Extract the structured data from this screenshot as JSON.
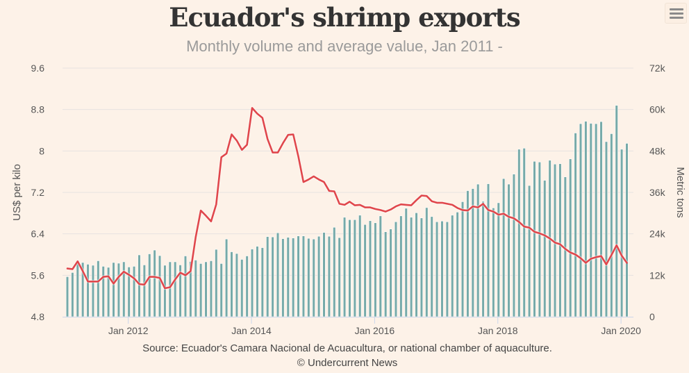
{
  "header": {
    "title": "Ecuador's shrimp exports",
    "subtitle": "Monthly volume and average value, Jan 2011 -"
  },
  "menu": {
    "icon": "hamburger-menu-icon"
  },
  "footer": {
    "source": "Source: Ecuador's Camara Nacional de Acuacultura, or national chamber of aquaculture.",
    "credit": "© Undercurrent News"
  },
  "colors": {
    "background": "#fdf2e8",
    "bars": "#76aaa9",
    "line": "#e0474c",
    "grid": "#e6e2e0"
  },
  "chart_data": {
    "type": "bar+line",
    "title": "Ecuador's shrimp exports",
    "subtitle": "Monthly volume and average value, Jan 2011 -",
    "x_start": "Jan 2011",
    "x_end": "Feb 2020",
    "x_tick_labels": [
      "Jan 2012",
      "Jan 2014",
      "Jan 2016",
      "Jan 2018",
      "Jan 2020"
    ],
    "x_tick_month_index": [
      12,
      36,
      60,
      84,
      108
    ],
    "y_left": {
      "label": "US$ per kilo",
      "range": [
        4.8,
        9.6
      ],
      "ticks": [
        "9.6",
        "8.8",
        "8",
        "7.2",
        "6.4",
        "5.6",
        "4.8"
      ],
      "tick_values": [
        9.6,
        8.8,
        8.0,
        7.2,
        6.4,
        5.6,
        4.8
      ]
    },
    "y_right": {
      "label": "Metric tons",
      "range": [
        0,
        72000
      ],
      "ticks": [
        "72k",
        "60k",
        "48k",
        "36k",
        "24k",
        "12k",
        "0"
      ],
      "tick_values": [
        72000,
        60000,
        48000,
        36000,
        24000,
        12000,
        0
      ]
    },
    "grid": true,
    "series": [
      {
        "name": "Volume (metric tons)",
        "type": "bar",
        "axis": "right",
        "values": [
          11600,
          12800,
          15400,
          15700,
          15200,
          14900,
          16200,
          14600,
          14300,
          15700,
          15500,
          15900,
          14400,
          14600,
          17900,
          15000,
          18200,
          19300,
          17700,
          14900,
          15900,
          15900,
          15000,
          17600,
          16000,
          16400,
          15400,
          15900,
          16200,
          19500,
          15400,
          22500,
          18800,
          18300,
          16600,
          17600,
          19600,
          20400,
          20000,
          23200,
          23100,
          24300,
          22600,
          23000,
          22800,
          23400,
          23400,
          22700,
          22500,
          23300,
          24400,
          23300,
          25900,
          22900,
          28800,
          28100,
          28100,
          29400,
          26700,
          27800,
          27200,
          29200,
          24600,
          25400,
          27500,
          29200,
          31400,
          28800,
          30100,
          28600,
          31600,
          29000,
          27500,
          27700,
          27500,
          29400,
          30300,
          33300,
          36500,
          37100,
          38400,
          33400,
          38500,
          31500,
          33000,
          40000,
          38400,
          41300,
          48500,
          48800,
          38000,
          45000,
          44800,
          39500,
          45300,
          44200,
          44300,
          40500,
          45700,
          53200,
          55900,
          56600,
          56000,
          55900,
          56500,
          50700,
          53000,
          61200,
          48500,
          50200
        ]
      },
      {
        "name": "Average value (US$ per kilo)",
        "type": "line",
        "axis": "left",
        "values": [
          5.73,
          5.72,
          5.87,
          5.68,
          5.48,
          5.48,
          5.48,
          5.57,
          5.58,
          5.44,
          5.57,
          5.67,
          5.61,
          5.54,
          5.43,
          5.42,
          5.57,
          5.57,
          5.55,
          5.35,
          5.37,
          5.52,
          5.65,
          5.6,
          5.68,
          6.34,
          6.85,
          6.75,
          6.64,
          6.97,
          7.88,
          7.95,
          8.32,
          8.2,
          8.02,
          8.12,
          8.83,
          8.72,
          8.64,
          8.23,
          7.97,
          7.97,
          8.15,
          8.31,
          8.32,
          7.89,
          7.4,
          7.45,
          7.51,
          7.45,
          7.4,
          7.23,
          7.22,
          6.98,
          6.96,
          7.02,
          6.95,
          6.96,
          6.91,
          6.91,
          6.88,
          6.86,
          6.83,
          6.87,
          6.93,
          6.97,
          6.96,
          6.95,
          7.05,
          7.14,
          7.13,
          7.03,
          7.0,
          7.0,
          6.98,
          6.96,
          6.9,
          6.86,
          6.85,
          6.93,
          6.91,
          6.98,
          6.86,
          6.83,
          6.77,
          6.79,
          6.73,
          6.7,
          6.63,
          6.54,
          6.52,
          6.44,
          6.41,
          6.37,
          6.31,
          6.23,
          6.2,
          6.11,
          6.04,
          6.0,
          5.93,
          5.84,
          5.92,
          5.95,
          5.97,
          5.81,
          5.99,
          6.18,
          5.98,
          5.84
        ]
      }
    ]
  }
}
